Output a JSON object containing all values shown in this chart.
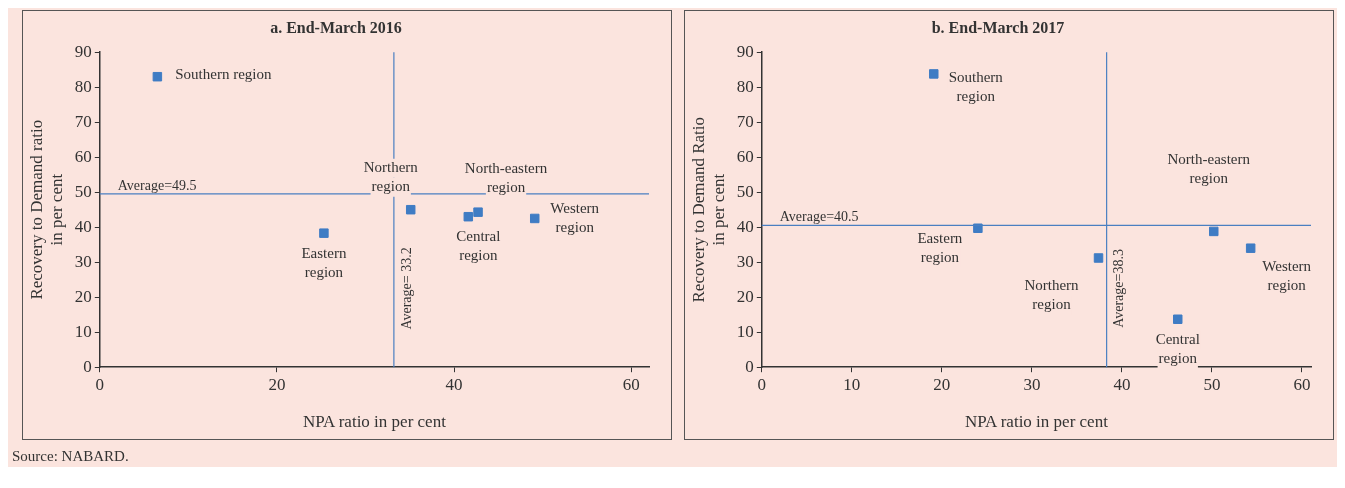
{
  "chart_data": [
    {
      "type": "scatter",
      "title": "a. End-March 2016",
      "xlabel": "NPA ratio in per cent",
      "ylabel": "Recovery to Demand ratio\nin per cent",
      "x": [
        6.5,
        25.3,
        35.1,
        41.6,
        42.7,
        49.1
      ],
      "values": [
        83,
        38.3,
        45,
        43,
        44.3,
        42.5
      ],
      "color": "#3f7cc4",
      "marker": "square",
      "value_labels": [
        "Southern region",
        "Eastern\nregion",
        "Northern\nregion",
        "Central\nregion",
        "North-eastern\nregion",
        "Western\nregion"
      ],
      "xlim": [
        0,
        62
      ],
      "xticks": [
        0,
        20,
        40,
        60
      ],
      "ylim": [
        0,
        90
      ],
      "yticks": [
        0,
        10,
        20,
        30,
        40,
        50,
        60,
        70,
        80,
        90
      ],
      "ref_lines": [
        {
          "axis": "y",
          "value": 49.5,
          "label": "Average=49.5",
          "color": "#4a7fc1"
        },
        {
          "axis": "x",
          "value": 33.2,
          "label": "Average= 33.2",
          "color": "#4a7fc1"
        }
      ],
      "annotations": [
        "Source: NABARD."
      ]
    },
    {
      "type": "scatter",
      "title": "b. End-March 2017",
      "xlabel": "NPA ratio in per cent",
      "ylabel": "Recovery to Demand Ratio\nin per cent",
      "x": [
        19.1,
        24,
        37.4,
        46.2,
        50.2,
        54.3
      ],
      "values": [
        83.8,
        39.7,
        31.2,
        13.7,
        38.8,
        34
      ],
      "color": "#3f7cc4",
      "marker": "square",
      "value_labels": [
        "Southern\nregion",
        "Eastern\nregion",
        "Northern\nregion",
        "Central\nregion",
        "North-eastern\nregion",
        "Western\nregion"
      ],
      "xlim": [
        0,
        61
      ],
      "xticks": [
        0,
        10,
        20,
        30,
        40,
        50,
        60
      ],
      "ylim": [
        0,
        90
      ],
      "yticks": [
        0,
        10,
        20,
        30,
        40,
        50,
        60,
        70,
        80,
        90
      ],
      "ref_lines": [
        {
          "axis": "y",
          "value": 40.5,
          "label": "Average=40.5",
          "color": "#4a7fc1"
        },
        {
          "axis": "x",
          "value": 38.3,
          "label": "Average=38.3",
          "color": "#4a7fc1"
        }
      ]
    }
  ]
}
